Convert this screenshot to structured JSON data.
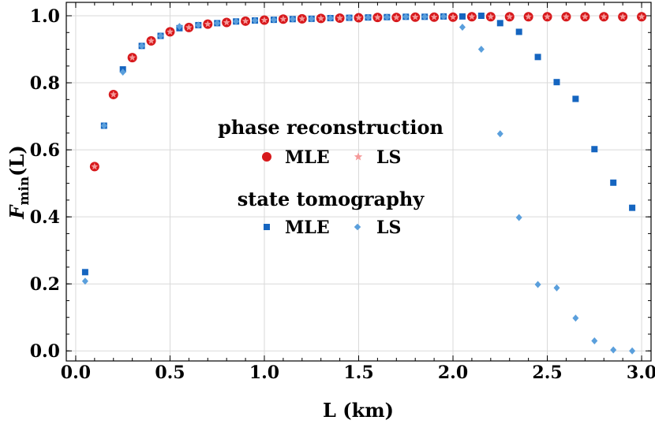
{
  "chart_data": {
    "type": "scatter",
    "xlabel": "L (km)",
    "ylabel_main": "F",
    "ylabel_sub": "min",
    "ylabel_arg": "(L)",
    "xlim": [
      -0.05,
      3.05
    ],
    "ylim": [
      -0.03,
      1.04
    ],
    "x_ticks": [
      0.0,
      0.5,
      1.0,
      1.5,
      2.0,
      2.5,
      3.0
    ],
    "x_tick_labels": [
      "0.0",
      "0.5",
      "1.0",
      "1.5",
      "2.0",
      "2.5",
      "3.0"
    ],
    "y_ticks": [
      0.0,
      0.2,
      0.4,
      0.6,
      0.8,
      1.0
    ],
    "y_tick_labels": [
      "0.0",
      "0.2",
      "0.4",
      "0.6",
      "0.8",
      "1.0"
    ],
    "grid": true,
    "legend": {
      "placement": "center",
      "groups": [
        {
          "title": "phase reconstruction",
          "entries": [
            {
              "label": "MLE",
              "series": 0
            },
            {
              "label": "LS",
              "series": 1
            }
          ]
        },
        {
          "title": "state tomography",
          "entries": [
            {
              "label": "MLE",
              "series": 2
            },
            {
              "label": "LS",
              "series": 3
            }
          ]
        }
      ]
    },
    "series": [
      {
        "name": "MLE",
        "marker": "circle",
        "color": "#d7191c",
        "x": [
          0.1,
          0.2,
          0.3,
          0.4,
          0.5,
          0.6,
          0.7,
          0.8,
          0.9,
          1.0,
          1.1,
          1.2,
          1.3,
          1.4,
          1.5,
          1.6,
          1.7,
          1.8,
          1.9,
          2.0,
          2.1,
          2.2,
          2.3,
          2.4,
          2.5,
          2.6,
          2.7,
          2.8,
          2.9,
          3.0
        ],
        "y": [
          0.55,
          0.765,
          0.875,
          0.925,
          0.952,
          0.965,
          0.975,
          0.98,
          0.984,
          0.987,
          0.99,
          0.991,
          0.992,
          0.993,
          0.994,
          0.995,
          0.995,
          0.996,
          0.996,
          0.996,
          0.997,
          0.997,
          0.997,
          0.997,
          0.997,
          0.997,
          0.997,
          0.997,
          0.997,
          0.997
        ]
      },
      {
        "name": "LS",
        "marker": "star",
        "color": "#f59a9a",
        "x": [
          0.1,
          0.2,
          0.3,
          0.4,
          0.5,
          0.6,
          0.7,
          0.8,
          0.9,
          1.0,
          1.1,
          1.2,
          1.3,
          1.4,
          1.5,
          1.6,
          1.7,
          1.8,
          1.9,
          2.0,
          2.1,
          2.2,
          2.3,
          2.4,
          2.5,
          2.6,
          2.7,
          2.8,
          2.9,
          3.0
        ],
        "y": [
          0.55,
          0.765,
          0.875,
          0.925,
          0.952,
          0.965,
          0.975,
          0.98,
          0.984,
          0.987,
          0.99,
          0.991,
          0.992,
          0.993,
          0.994,
          0.995,
          0.995,
          0.996,
          0.996,
          0.996,
          0.997,
          0.997,
          0.997,
          0.997,
          0.997,
          0.997,
          0.997,
          0.997,
          0.997,
          0.997
        ]
      },
      {
        "name": "MLE",
        "marker": "square",
        "color": "#1565c0",
        "x": [
          0.05,
          0.15,
          0.25,
          0.35,
          0.45,
          0.55,
          0.65,
          0.75,
          0.85,
          0.95,
          1.05,
          1.15,
          1.25,
          1.35,
          1.45,
          1.55,
          1.65,
          1.75,
          1.85,
          1.95,
          2.05,
          2.15,
          2.25,
          2.35,
          2.45,
          2.55,
          2.65,
          2.75,
          2.85,
          2.95
        ],
        "y": [
          0.235,
          0.672,
          0.84,
          0.91,
          0.94,
          0.963,
          0.972,
          0.978,
          0.983,
          0.986,
          0.988,
          0.99,
          0.991,
          0.993,
          0.994,
          0.995,
          0.996,
          0.997,
          0.997,
          0.998,
          0.998,
          1.0,
          0.978,
          0.952,
          0.877,
          0.802,
          0.752,
          0.602,
          0.502,
          0.427
        ]
      },
      {
        "name": "LS",
        "marker": "diamond",
        "color": "#5a9fdc",
        "x": [
          0.05,
          0.15,
          0.25,
          0.35,
          0.45,
          0.55,
          0.65,
          0.75,
          0.85,
          0.95,
          1.05,
          1.15,
          1.25,
          1.35,
          1.45,
          1.55,
          1.65,
          1.75,
          1.85,
          1.95,
          2.05,
          2.15,
          2.25,
          2.35,
          2.45,
          2.55,
          2.65,
          2.75,
          2.85,
          2.95
        ],
        "y": [
          0.208,
          0.672,
          0.832,
          0.91,
          0.94,
          0.968,
          0.972,
          0.978,
          0.983,
          0.986,
          0.988,
          0.99,
          0.991,
          0.993,
          0.994,
          0.995,
          0.996,
          0.997,
          0.997,
          0.998,
          0.966,
          0.9,
          0.648,
          0.398,
          0.198,
          0.188,
          0.098,
          0.03,
          0.003,
          0.0
        ]
      }
    ]
  }
}
